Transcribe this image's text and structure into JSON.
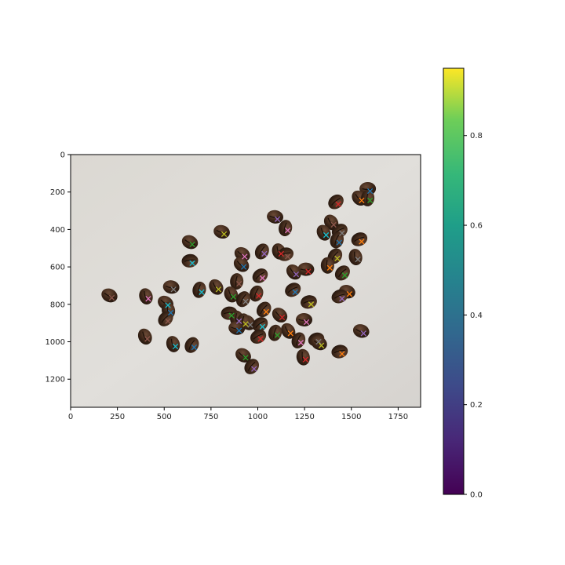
{
  "chart_data": {
    "type": "scatter",
    "title": "",
    "xlabel": "",
    "ylabel": "",
    "background": "photo of coffee beans on a light gray surface",
    "xlim": [
      0,
      1870
    ],
    "ylim": [
      1350,
      0
    ],
    "x_ticks": [
      0,
      250,
      500,
      750,
      1000,
      1250,
      1500,
      1750
    ],
    "y_ticks": [
      0,
      200,
      400,
      600,
      800,
      1000,
      1200
    ],
    "x_tick_labels": [
      "0",
      "250",
      "500",
      "750",
      "1000",
      "1250",
      "1500",
      "1750"
    ],
    "y_tick_labels": [
      "0",
      "200",
      "400",
      "600",
      "800",
      "1000",
      "1200"
    ],
    "marker": "x",
    "marker_colors": [
      "#1f77b4",
      "#ff7f0e",
      "#2ca02c",
      "#d62728",
      "#9467bd",
      "#8c564b",
      "#e377c2",
      "#7f7f7f",
      "#bcbd22",
      "#17becf"
    ],
    "points": [
      [
        1600,
        195
      ],
      [
        1555,
        245
      ],
      [
        1600,
        245
      ],
      [
        1430,
        265
      ],
      [
        1105,
        345
      ],
      [
        1405,
        375
      ],
      [
        1160,
        405
      ],
      [
        1450,
        420
      ],
      [
        820,
        425
      ],
      [
        1365,
        430
      ],
      [
        1435,
        470
      ],
      [
        1555,
        465
      ],
      [
        650,
        480
      ],
      [
        1125,
        530
      ],
      [
        1035,
        530
      ],
      [
        1160,
        545
      ],
      [
        930,
        545
      ],
      [
        1535,
        560
      ],
      [
        1425,
        555
      ],
      [
        650,
        580
      ],
      [
        925,
        600
      ],
      [
        1385,
        605
      ],
      [
        1465,
        645
      ],
      [
        1270,
        625
      ],
      [
        1205,
        640
      ],
      [
        900,
        690
      ],
      [
        1025,
        660
      ],
      [
        550,
        720
      ],
      [
        790,
        720
      ],
      [
        700,
        735
      ],
      [
        1200,
        735
      ],
      [
        1490,
        745
      ],
      [
        870,
        760
      ],
      [
        1005,
        755
      ],
      [
        1450,
        770
      ],
      [
        220,
        765
      ],
      [
        415,
        770
      ],
      [
        935,
        785
      ],
      [
        1285,
        800
      ],
      [
        520,
        805
      ],
      [
        535,
        845
      ],
      [
        1045,
        840
      ],
      [
        860,
        860
      ],
      [
        1130,
        870
      ],
      [
        900,
        890
      ],
      [
        520,
        890
      ],
      [
        1260,
        895
      ],
      [
        960,
        910
      ],
      [
        935,
        905
      ],
      [
        1025,
        920
      ],
      [
        900,
        940
      ],
      [
        1175,
        955
      ],
      [
        1105,
        965
      ],
      [
        1015,
        985
      ],
      [
        1565,
        955
      ],
      [
        410,
        985
      ],
      [
        1230,
        1005
      ],
      [
        1325,
        1000
      ],
      [
        1340,
        1020
      ],
      [
        560,
        1025
      ],
      [
        660,
        1030
      ],
      [
        1450,
        1065
      ],
      [
        935,
        1085
      ],
      [
        1255,
        1095
      ],
      [
        980,
        1145
      ]
    ],
    "colorbar": {
      "colormap": "viridis",
      "range": [
        0,
        0.95
      ],
      "ticks": [
        0.0,
        0.2,
        0.4,
        0.6,
        0.8
      ],
      "tick_labels": [
        "0.0",
        "0.2",
        "0.4",
        "0.6",
        "0.8"
      ]
    }
  }
}
